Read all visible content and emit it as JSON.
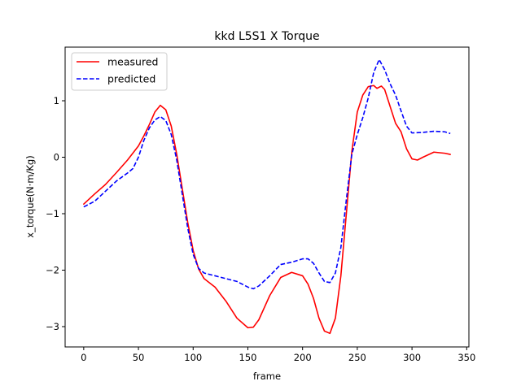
{
  "chart_data": {
    "type": "line",
    "title": "kkd L5S1 X Torque",
    "xlabel": "frame",
    "ylabel": "x_torque(N·m/Kg)",
    "xlim": [
      -17,
      352
    ],
    "ylim": [
      -3.36,
      1.95
    ],
    "xticks": [
      0,
      50,
      100,
      150,
      200,
      250,
      300,
      350
    ],
    "yticks": [
      -3,
      -2,
      -1,
      0,
      1
    ],
    "grid": false,
    "legend_position": "upper-left",
    "series": [
      {
        "name": "measured",
        "color": "#ff0000",
        "style": "solid",
        "points": [
          [
            0,
            -0.83
          ],
          [
            10,
            -0.65
          ],
          [
            20,
            -0.48
          ],
          [
            30,
            -0.27
          ],
          [
            40,
            -0.05
          ],
          [
            50,
            0.2
          ],
          [
            55,
            0.38
          ],
          [
            60,
            0.58
          ],
          [
            65,
            0.8
          ],
          [
            70,
            0.92
          ],
          [
            75,
            0.84
          ],
          [
            80,
            0.55
          ],
          [
            85,
            0.05
          ],
          [
            90,
            -0.55
          ],
          [
            95,
            -1.15
          ],
          [
            100,
            -1.65
          ],
          [
            105,
            -1.98
          ],
          [
            110,
            -2.15
          ],
          [
            120,
            -2.3
          ],
          [
            130,
            -2.55
          ],
          [
            140,
            -2.85
          ],
          [
            150,
            -3.02
          ],
          [
            155,
            -3.01
          ],
          [
            160,
            -2.88
          ],
          [
            170,
            -2.45
          ],
          [
            180,
            -2.13
          ],
          [
            190,
            -2.04
          ],
          [
            200,
            -2.1
          ],
          [
            205,
            -2.25
          ],
          [
            210,
            -2.5
          ],
          [
            215,
            -2.85
          ],
          [
            220,
            -3.08
          ],
          [
            225,
            -3.12
          ],
          [
            230,
            -2.85
          ],
          [
            235,
            -2.1
          ],
          [
            240,
            -1.0
          ],
          [
            245,
            0.1
          ],
          [
            250,
            0.8
          ],
          [
            255,
            1.1
          ],
          [
            260,
            1.25
          ],
          [
            265,
            1.27
          ],
          [
            268,
            1.22
          ],
          [
            272,
            1.26
          ],
          [
            275,
            1.2
          ],
          [
            280,
            0.9
          ],
          [
            285,
            0.6
          ],
          [
            290,
            0.45
          ],
          [
            295,
            0.15
          ],
          [
            300,
            -0.03
          ],
          [
            305,
            -0.05
          ],
          [
            310,
            0.0
          ],
          [
            320,
            0.09
          ],
          [
            330,
            0.07
          ],
          [
            335,
            0.05
          ]
        ]
      },
      {
        "name": "predicted",
        "color": "#0000ff",
        "style": "dashed",
        "points": [
          [
            0,
            -0.88
          ],
          [
            10,
            -0.78
          ],
          [
            20,
            -0.6
          ],
          [
            30,
            -0.42
          ],
          [
            40,
            -0.28
          ],
          [
            45,
            -0.2
          ],
          [
            50,
            0.0
          ],
          [
            55,
            0.3
          ],
          [
            60,
            0.52
          ],
          [
            65,
            0.66
          ],
          [
            70,
            0.72
          ],
          [
            75,
            0.65
          ],
          [
            80,
            0.4
          ],
          [
            85,
            -0.05
          ],
          [
            90,
            -0.65
          ],
          [
            95,
            -1.25
          ],
          [
            100,
            -1.72
          ],
          [
            105,
            -1.97
          ],
          [
            110,
            -2.05
          ],
          [
            120,
            -2.1
          ],
          [
            130,
            -2.15
          ],
          [
            140,
            -2.2
          ],
          [
            150,
            -2.3
          ],
          [
            155,
            -2.33
          ],
          [
            160,
            -2.28
          ],
          [
            170,
            -2.1
          ],
          [
            180,
            -1.9
          ],
          [
            190,
            -1.86
          ],
          [
            200,
            -1.8
          ],
          [
            205,
            -1.8
          ],
          [
            210,
            -1.88
          ],
          [
            215,
            -2.05
          ],
          [
            220,
            -2.2
          ],
          [
            225,
            -2.22
          ],
          [
            230,
            -2.05
          ],
          [
            235,
            -1.6
          ],
          [
            240,
            -0.75
          ],
          [
            245,
            0.05
          ],
          [
            250,
            0.4
          ],
          [
            255,
            0.7
          ],
          [
            260,
            1.05
          ],
          [
            265,
            1.5
          ],
          [
            270,
            1.73
          ],
          [
            275,
            1.55
          ],
          [
            280,
            1.3
          ],
          [
            285,
            1.1
          ],
          [
            290,
            0.82
          ],
          [
            295,
            0.55
          ],
          [
            300,
            0.43
          ],
          [
            310,
            0.44
          ],
          [
            320,
            0.46
          ],
          [
            330,
            0.45
          ],
          [
            335,
            0.42
          ]
        ]
      }
    ]
  }
}
